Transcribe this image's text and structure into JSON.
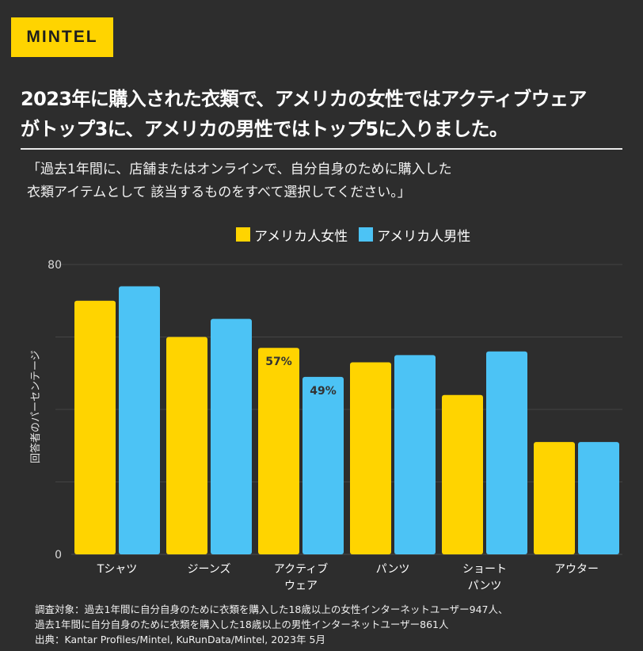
{
  "logo": "MINTEL",
  "headline": [
    "2023年に購入された衣類で、アメリカの女性ではアクティブウェア",
    "がトップ3に、アメリカの男性ではトップ5に入りました。"
  ],
  "question": [
    "「過去1年間に、店舗またはオンラインで、自分自身のために購入した",
    "衣類アイテムとして 該当するものをすべて選択してください。」"
  ],
  "chart_data": {
    "type": "bar",
    "categories": [
      "Tシャツ",
      "ジーンズ",
      "アクティブ\nウェア",
      "パンツ",
      "ショート\nパンツ",
      "アウター"
    ],
    "series": [
      {
        "name": "アメリカ人女性",
        "color": "#ffd400",
        "values": [
          70,
          60,
          57,
          53,
          44,
          31
        ]
      },
      {
        "name": "アメリカ人男性",
        "color": "#4cc3f5",
        "values": [
          74,
          65,
          49,
          55,
          56,
          31
        ]
      }
    ],
    "data_labels": [
      {
        "series": 0,
        "index": 2,
        "text": "57%"
      },
      {
        "series": 1,
        "index": 2,
        "text": "49%"
      }
    ],
    "yticks": [
      0,
      80
    ],
    "ylim": [
      0,
      80
    ],
    "gridlines": [
      20,
      40,
      60,
      80
    ],
    "ylabel": "回答者のパーセンテージ",
    "xlabel": "",
    "legend_position": "top"
  },
  "footnote": [
    "調査対象：過去1年間に自分自身のために衣類を購入した18歳以上の女性インターネットユーザー947人、",
    "過去1年間に自分自身のために衣類を購入した18歳以上の男性インターネットユーザー861人",
    "出典：Kantar Profiles/Mintel, KuRunData/Mintel, 2023年 5月"
  ]
}
